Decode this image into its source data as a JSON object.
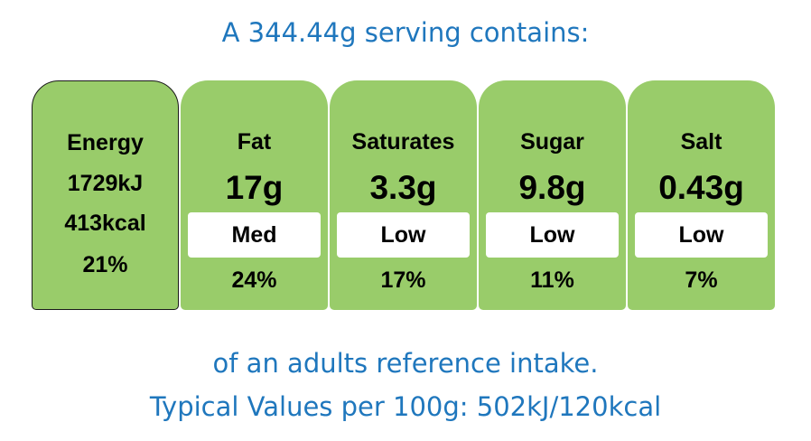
{
  "header": {
    "serving_text": "A 344.44g serving contains:"
  },
  "energy": {
    "label": "Energy",
    "kj": "1729kJ",
    "kcal": "413kcal",
    "percent": "21%",
    "color": "#99cc6a"
  },
  "nutrients": [
    {
      "name": "Fat",
      "amount": "17g",
      "level": "Med",
      "percent": "24%",
      "color": "#99cc6a"
    },
    {
      "name": "Saturates",
      "amount": "3.3g",
      "level": "Low",
      "percent": "17%",
      "color": "#99cc6a"
    },
    {
      "name": "Sugar",
      "amount": "9.8g",
      "level": "Low",
      "percent": "11%",
      "color": "#99cc6a"
    },
    {
      "name": "Salt",
      "amount": "0.43g",
      "level": "Low",
      "percent": "7%",
      "color": "#99cc6a"
    }
  ],
  "footer": {
    "reference_text": "of an adults reference intake.",
    "typical_values_text": "Typical Values per 100g: 502kJ/120kcal"
  },
  "colors": {
    "text_blue": "#1f77bd",
    "card_green": "#99cc6a",
    "level_box": "#ffffff"
  }
}
